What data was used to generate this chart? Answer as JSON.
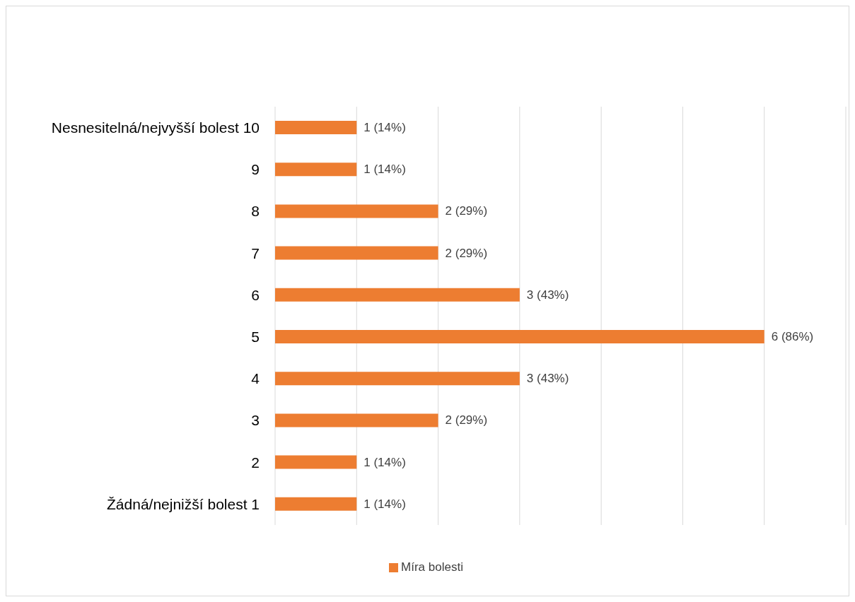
{
  "chart_data": {
    "type": "bar",
    "orientation": "horizontal",
    "categories": [
      "Nesnesitelná/nejvyšší bolest 10",
      "9",
      "8",
      "7",
      "6",
      "5",
      "4",
      "3",
      "2",
      "Žádná/nejnižší bolest 1"
    ],
    "series": [
      {
        "name": "Míra bolesti",
        "color": "#ed7d31",
        "values": [
          1,
          1,
          2,
          2,
          3,
          6,
          3,
          2,
          1,
          1
        ],
        "value_labels": [
          "1 (14%)",
          "1 (14%)",
          "2 (29%)",
          "2 (29%)",
          "3 (43%)",
          "6 (86%)",
          "3 (43%)",
          "2 (29%)",
          "1 (14%)",
          "1 (14%)"
        ]
      }
    ],
    "xlim": [
      0,
      7
    ],
    "xticks": [
      {
        "value": 0,
        "label": null
      },
      {
        "value": 1,
        "label": null
      },
      {
        "value": 2,
        "label": null
      },
      {
        "value": 3,
        "label": null
      },
      {
        "value": 4,
        "label": null
      },
      {
        "value": 5,
        "label": null
      },
      {
        "value": 6,
        "label": null
      },
      {
        "value": 7,
        "label": null
      }
    ],
    "grid": "x",
    "legend": "bottom",
    "tick_labels": "y"
  }
}
